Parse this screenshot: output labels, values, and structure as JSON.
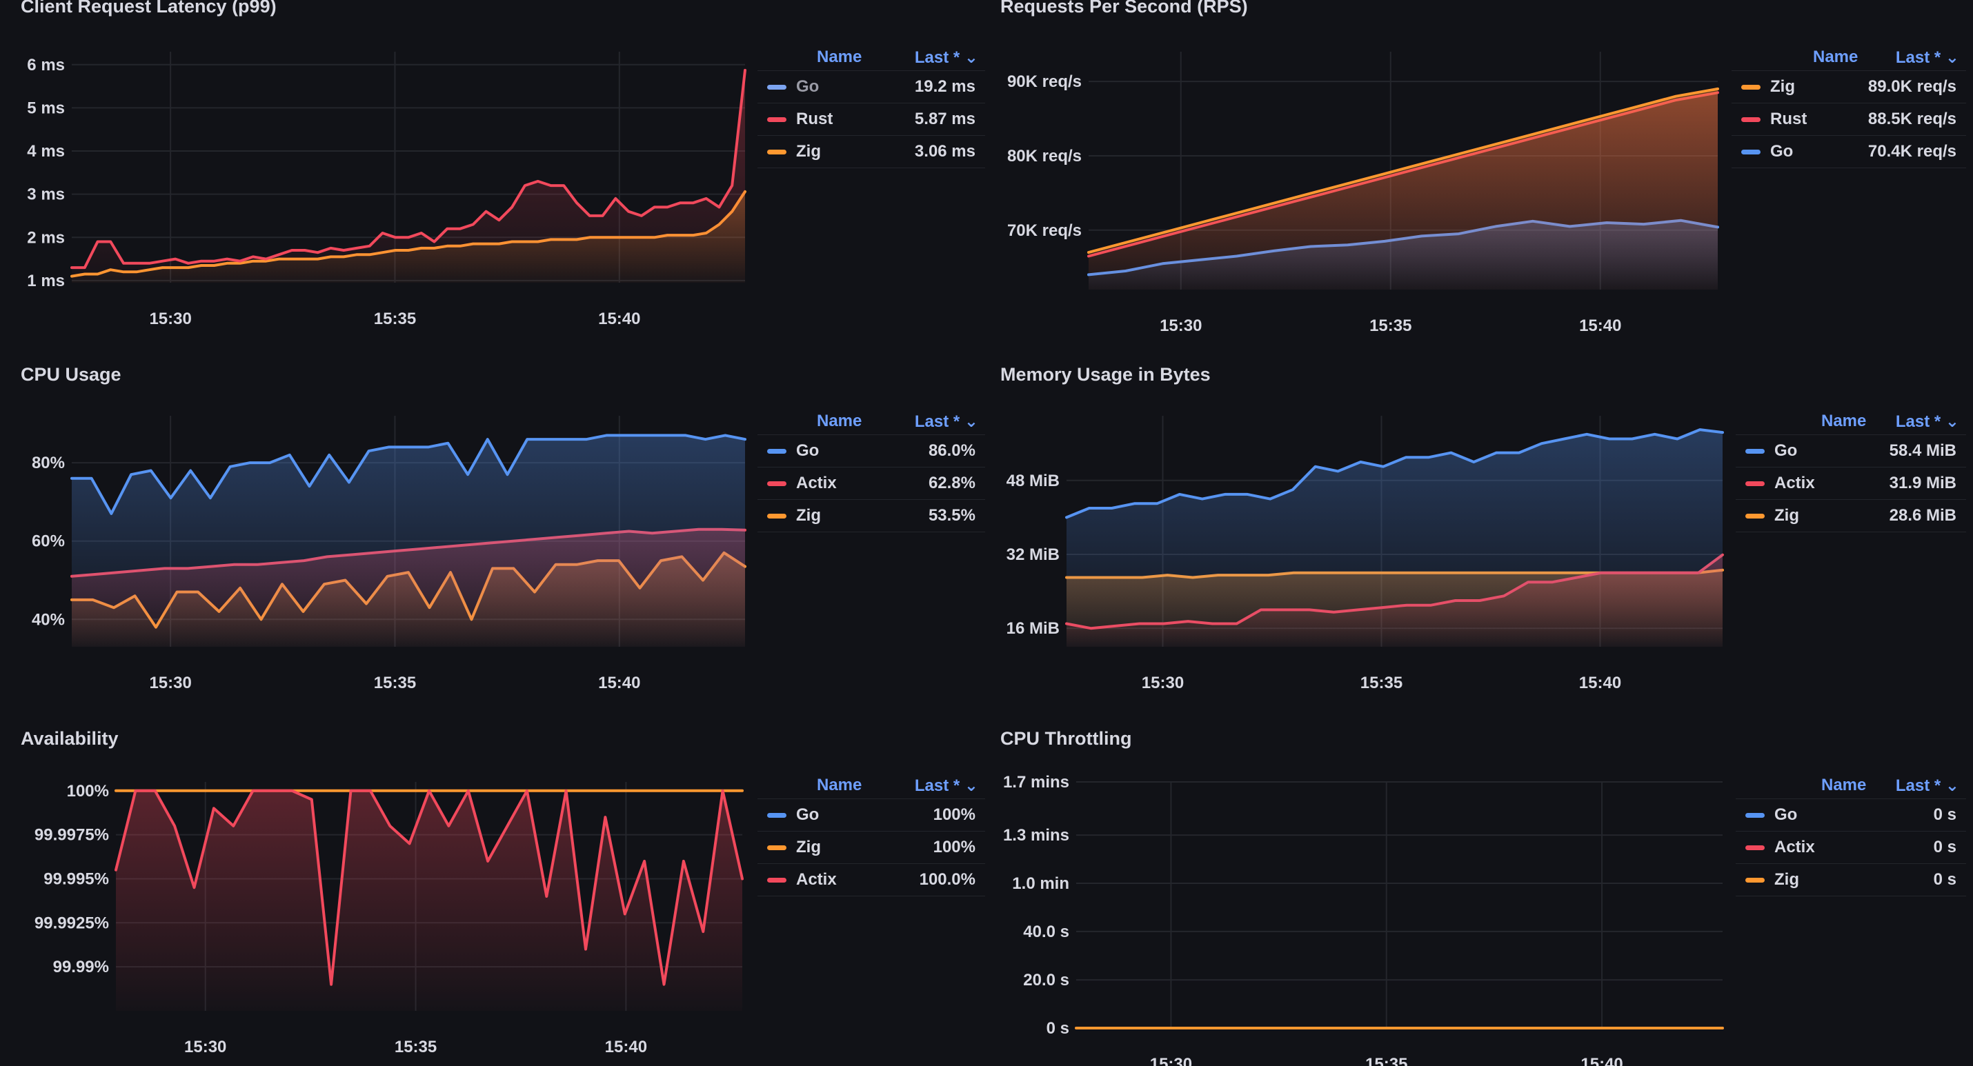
{
  "panels": [
    {
      "title": "Client Request Latency (p99)",
      "legend": {
        "name_header": "Name",
        "last_header": "Last * ⌄",
        "rows": [
          {
            "name": "Go",
            "value": "19.2 ms",
            "color": "#7ca4f0",
            "muted": true
          },
          {
            "name": "Rust",
            "value": "5.87 ms",
            "color": "#f2495c"
          },
          {
            "name": "Zig",
            "value": "3.06 ms",
            "color": "#ff9830"
          }
        ]
      }
    },
    {
      "title": "Requests Per Second (RPS)",
      "legend": {
        "name_header": "Name",
        "last_header": "Last * ⌄",
        "rows": [
          {
            "name": "Zig",
            "value": "89.0K req/s",
            "color": "#ff9830"
          },
          {
            "name": "Rust",
            "value": "88.5K req/s",
            "color": "#f2495c"
          },
          {
            "name": "Go",
            "value": "70.4K req/s",
            "color": "#5794f2"
          }
        ]
      }
    },
    {
      "title": "CPU Usage",
      "legend": {
        "name_header": "Name",
        "last_header": "Last * ⌄",
        "rows": [
          {
            "name": "Go",
            "value": "86.0%",
            "color": "#5794f2"
          },
          {
            "name": "Actix",
            "value": "62.8%",
            "color": "#f2495c"
          },
          {
            "name": "Zig",
            "value": "53.5%",
            "color": "#ff9830"
          }
        ]
      }
    },
    {
      "title": "Memory Usage in Bytes",
      "legend": {
        "name_header": "Name",
        "last_header": "Last * ⌄",
        "rows": [
          {
            "name": "Go",
            "value": "58.4 MiB",
            "color": "#5794f2"
          },
          {
            "name": "Actix",
            "value": "31.9 MiB",
            "color": "#f2495c"
          },
          {
            "name": "Zig",
            "value": "28.6 MiB",
            "color": "#ff9830"
          }
        ]
      }
    },
    {
      "title": "Availability",
      "legend": {
        "name_header": "Name",
        "last_header": "Last * ⌄",
        "rows": [
          {
            "name": "Go",
            "value": "100%",
            "color": "#5794f2"
          },
          {
            "name": "Zig",
            "value": "100%",
            "color": "#ff9830"
          },
          {
            "name": "Actix",
            "value": "100.0%",
            "color": "#f2495c"
          }
        ]
      }
    },
    {
      "title": "CPU Throttling",
      "legend": {
        "name_header": "Name",
        "last_header": "Last * ⌄",
        "rows": [
          {
            "name": "Go",
            "value": "0 s",
            "color": "#5794f2"
          },
          {
            "name": "Actix",
            "value": "0 s",
            "color": "#f2495c"
          },
          {
            "name": "Zig",
            "value": "0 s",
            "color": "#ff9830"
          }
        ]
      }
    }
  ],
  "chart_data": [
    {
      "type": "line",
      "title": "Client Request Latency (p99)",
      "xlabel": "",
      "ylabel": "",
      "x_range": [
        0,
        15.0
      ],
      "ylim": [
        0.95,
        6.3
      ],
      "x_ticks": [
        {
          "t": 2.2,
          "label": "15:30"
        },
        {
          "t": 7.2,
          "label": "15:35"
        },
        {
          "t": 12.2,
          "label": "15:40"
        }
      ],
      "y_ticks": [
        {
          "v": 1,
          "label": "1 ms"
        },
        {
          "v": 2,
          "label": "2 ms"
        },
        {
          "v": 3,
          "label": "3 ms"
        },
        {
          "v": 4,
          "label": "4 ms"
        },
        {
          "v": 5,
          "label": "5 ms"
        },
        {
          "v": 6,
          "label": "6 ms"
        }
      ],
      "series": [
        {
          "name": "Rust",
          "color": "#f2495c",
          "fill": true,
          "values": [
            1.3,
            1.3,
            1.9,
            1.9,
            1.4,
            1.4,
            1.4,
            1.45,
            1.5,
            1.4,
            1.45,
            1.45,
            1.5,
            1.45,
            1.55,
            1.5,
            1.6,
            1.7,
            1.7,
            1.65,
            1.75,
            1.7,
            1.75,
            1.8,
            2.1,
            2.0,
            2.0,
            2.1,
            1.9,
            2.2,
            2.2,
            2.3,
            2.6,
            2.4,
            2.7,
            3.2,
            3.3,
            3.2,
            3.2,
            2.8,
            2.5,
            2.5,
            2.9,
            2.6,
            2.5,
            2.7,
            2.7,
            2.8,
            2.8,
            2.9,
            2.7,
            3.2,
            5.87
          ]
        },
        {
          "name": "Zig",
          "color": "#ff9830",
          "fill": true,
          "values": [
            1.1,
            1.15,
            1.15,
            1.25,
            1.2,
            1.2,
            1.25,
            1.3,
            1.3,
            1.3,
            1.35,
            1.35,
            1.4,
            1.4,
            1.45,
            1.45,
            1.5,
            1.5,
            1.5,
            1.5,
            1.55,
            1.55,
            1.6,
            1.6,
            1.65,
            1.7,
            1.7,
            1.75,
            1.75,
            1.8,
            1.8,
            1.85,
            1.85,
            1.85,
            1.9,
            1.9,
            1.9,
            1.95,
            1.95,
            1.95,
            2.0,
            2.0,
            2.0,
            2.0,
            2.0,
            2.0,
            2.05,
            2.05,
            2.05,
            2.1,
            2.3,
            2.6,
            3.06
          ]
        }
      ]
    },
    {
      "type": "line",
      "title": "Requests Per Second (RPS)",
      "xlabel": "",
      "ylabel": "",
      "x_range": [
        0,
        15.0
      ],
      "ylim": [
        62000,
        94000
      ],
      "x_ticks": [
        {
          "t": 2.2,
          "label": "15:30"
        },
        {
          "t": 7.2,
          "label": "15:35"
        },
        {
          "t": 12.2,
          "label": "15:40"
        }
      ],
      "y_ticks": [
        {
          "v": 70000,
          "label": "70K req/s"
        },
        {
          "v": 80000,
          "label": "80K req/s"
        },
        {
          "v": 90000,
          "label": "90K req/s"
        }
      ],
      "series": [
        {
          "name": "Zig",
          "color": "#ff9830",
          "fill": true,
          "values": [
            67000,
            68500,
            70000,
            71500,
            73000,
            74500,
            76000,
            77500,
            79000,
            80500,
            82000,
            83500,
            85000,
            86500,
            88000,
            89000
          ]
        },
        {
          "name": "Rust",
          "color": "#f2495c",
          "fill": true,
          "values": [
            66500,
            68000,
            69500,
            71000,
            72500,
            74000,
            75500,
            77000,
            78500,
            80000,
            81500,
            83000,
            84500,
            86000,
            87500,
            88500
          ]
        },
        {
          "name": "Go",
          "color": "#5794f2",
          "fill": true,
          "values": [
            64000,
            64500,
            65500,
            66000,
            66500,
            67200,
            67800,
            68000,
            68500,
            69200,
            69500,
            70500,
            71200,
            70500,
            71000,
            70800,
            71300,
            70400
          ]
        }
      ]
    },
    {
      "type": "line",
      "title": "CPU Usage",
      "xlabel": "",
      "ylabel": "",
      "x_range": [
        0,
        15.0
      ],
      "ylim": [
        33,
        92
      ],
      "x_ticks": [
        {
          "t": 2.2,
          "label": "15:30"
        },
        {
          "t": 7.2,
          "label": "15:35"
        },
        {
          "t": 12.2,
          "label": "15:40"
        }
      ],
      "y_ticks": [
        {
          "v": 40,
          "label": "40%"
        },
        {
          "v": 60,
          "label": "60%"
        },
        {
          "v": 80,
          "label": "80%"
        }
      ],
      "series": [
        {
          "name": "Go",
          "color": "#5794f2",
          "fill": true,
          "values": [
            76,
            76,
            67,
            77,
            78,
            71,
            78,
            71,
            79,
            80,
            80,
            82,
            74,
            82,
            75,
            83,
            84,
            84,
            84,
            85,
            77,
            86,
            77,
            86,
            86,
            86,
            86,
            87,
            87,
            87,
            87,
            87,
            86,
            87,
            86
          ]
        },
        {
          "name": "Actix",
          "color": "#f2495c",
          "fill": true,
          "values": [
            51,
            51.5,
            52,
            52.5,
            53,
            53,
            53.5,
            54,
            54,
            54.5,
            55,
            56,
            56.5,
            57,
            57.5,
            58,
            58.5,
            59,
            59.5,
            60,
            60.5,
            61,
            61.5,
            62,
            62.5,
            62,
            62.5,
            63,
            63,
            62.8
          ]
        },
        {
          "name": "Zig",
          "color": "#ff9830",
          "fill": true,
          "values": [
            45,
            45,
            43,
            46,
            38,
            47,
            47,
            42,
            48,
            40,
            49,
            42,
            49,
            50,
            44,
            51,
            52,
            43,
            52,
            40,
            53,
            53,
            47,
            54,
            54,
            55,
            55,
            48,
            55,
            56,
            50,
            57,
            53.5
          ]
        }
      ]
    },
    {
      "type": "line",
      "title": "Memory Usage in Bytes",
      "xlabel": "",
      "ylabel": "",
      "x_range": [
        0,
        15.0
      ],
      "ylim": [
        12,
        62
      ],
      "x_ticks": [
        {
          "t": 2.2,
          "label": "15:30"
        },
        {
          "t": 7.2,
          "label": "15:35"
        },
        {
          "t": 12.2,
          "label": "15:40"
        }
      ],
      "y_ticks": [
        {
          "v": 16,
          "label": "16 MiB"
        },
        {
          "v": 32,
          "label": "32 MiB"
        },
        {
          "v": 48,
          "label": "48 MiB"
        }
      ],
      "series": [
        {
          "name": "Go",
          "color": "#5794f2",
          "fill": true,
          "values": [
            40,
            42,
            42,
            43,
            43,
            45,
            44,
            45,
            45,
            44,
            46,
            51,
            50,
            52,
            51,
            53,
            53,
            54,
            52,
            54,
            54,
            56,
            57,
            58,
            57,
            57,
            58,
            57,
            59,
            58.4
          ]
        },
        {
          "name": "Actix",
          "color": "#f2495c",
          "fill": true,
          "values": [
            17,
            16,
            16.5,
            17,
            17,
            17.5,
            17,
            17,
            20,
            20,
            20,
            19.5,
            20,
            20.5,
            21,
            21,
            22,
            22,
            23,
            26,
            26,
            27,
            28,
            28,
            28,
            28,
            28,
            31.9
          ]
        },
        {
          "name": "Zig",
          "color": "#ff9830",
          "fill": true,
          "values": [
            27,
            27,
            27,
            27,
            27.5,
            27,
            27.5,
            27.5,
            27.5,
            28,
            28,
            28,
            28,
            28,
            28,
            28,
            28,
            28,
            28,
            28,
            28,
            28,
            28,
            28,
            28,
            28,
            28.6
          ]
        }
      ]
    },
    {
      "type": "line",
      "title": "Availability",
      "xlabel": "",
      "ylabel": "",
      "x_range": [
        0,
        14.0
      ],
      "ylim": [
        99.9875,
        100.0005
      ],
      "x_ticks": [
        {
          "t": 2.0,
          "label": "15:30"
        },
        {
          "t": 6.7,
          "label": "15:35"
        },
        {
          "t": 11.4,
          "label": "15:40"
        }
      ],
      "y_ticks": [
        {
          "v": 100,
          "label": "100%"
        },
        {
          "v": 99.9975,
          "label": "99.9975%"
        },
        {
          "v": 99.995,
          "label": "99.995%"
        },
        {
          "v": 99.9925,
          "label": "99.9925%"
        },
        {
          "v": 99.99,
          "label": "99.99%"
        }
      ],
      "series": [
        {
          "name": "Actix",
          "color": "#f2495c",
          "fill": true,
          "values": [
            99.9955,
            100,
            100,
            99.998,
            99.9945,
            99.999,
            99.998,
            100,
            100,
            100,
            99.9995,
            99.989,
            100,
            100,
            99.998,
            99.997,
            100,
            99.998,
            100,
            99.996,
            99.998,
            100,
            99.994,
            100,
            99.991,
            99.9985,
            99.993,
            99.996,
            99.989,
            99.996,
            99.992,
            100,
            99.995
          ]
        },
        {
          "name": "Zig",
          "color": "#ff9830",
          "fill": false,
          "values": [
            100,
            100
          ]
        }
      ]
    },
    {
      "type": "line",
      "title": "CPU Throttling",
      "xlabel": "",
      "ylabel": "",
      "x_range": [
        0,
        15.0
      ],
      "ylim": [
        0,
        1.7
      ],
      "x_ticks": [
        {
          "t": 2.2,
          "label": "15:30"
        },
        {
          "t": 7.2,
          "label": "15:35"
        },
        {
          "t": 12.2,
          "label": "15:40"
        }
      ],
      "y_ticks": [
        {
          "v": 0,
          "label": "0 s"
        },
        {
          "v": 0.333,
          "label": "20.0 s"
        },
        {
          "v": 0.667,
          "label": "40.0 s"
        },
        {
          "v": 1.0,
          "label": "1.0 min"
        },
        {
          "v": 1.333,
          "label": "1.3 mins"
        },
        {
          "v": 1.7,
          "label": "1.7 mins"
        }
      ],
      "series": [
        {
          "name": "Zig",
          "color": "#ff9830",
          "fill": false,
          "values": [
            0,
            0
          ]
        }
      ]
    }
  ]
}
